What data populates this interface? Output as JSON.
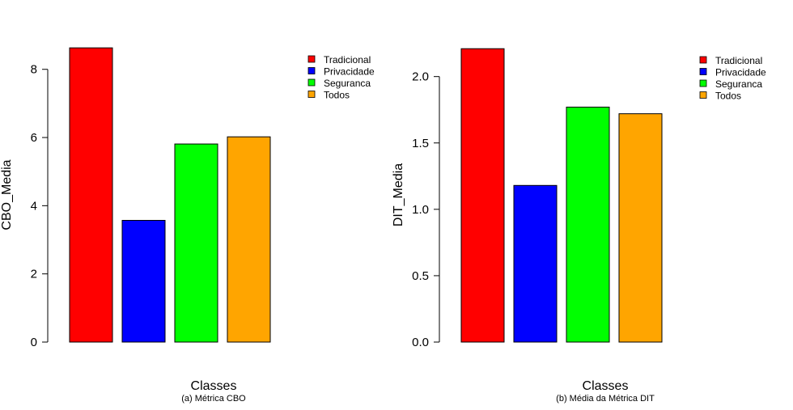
{
  "chart_data": [
    {
      "type": "bar",
      "categories": [
        "Tradicional",
        "Privacidade",
        "Seguranca",
        "Todos"
      ],
      "values": [
        8.63,
        3.57,
        5.81,
        6.02
      ],
      "colors": [
        "#ff0000",
        "#0000ff",
        "#00ff00",
        "#ffa500"
      ],
      "xlabel": "Classes",
      "ylabel": "CBO_Media",
      "caption": "(a) Métrica CBO",
      "yticks": [
        "0",
        "2",
        "4",
        "6",
        "8"
      ],
      "ytick_values": [
        0,
        2,
        4,
        6,
        8
      ],
      "ylim": [
        0,
        8.8
      ],
      "legend": [
        "Tradicional",
        "Privacidade",
        "Seguranca",
        "Todos"
      ],
      "legend_position": "top-right",
      "grid": false
    },
    {
      "type": "bar",
      "categories": [
        "Tradicional",
        "Privacidade",
        "Seguranca",
        "Todos"
      ],
      "values": [
        2.21,
        1.18,
        1.77,
        1.72
      ],
      "colors": [
        "#ff0000",
        "#0000ff",
        "#00ff00",
        "#ffa500"
      ],
      "xlabel": "Classes",
      "ylabel": "DIT_Media",
      "caption": "(b) Média da Métrica DIT",
      "yticks": [
        "0.0",
        "0.5",
        "1.0",
        "1.5",
        "2.0"
      ],
      "ytick_values": [
        0,
        0.5,
        1.0,
        1.5,
        2.0
      ],
      "ylim": [
        0,
        2.26
      ],
      "legend": [
        "Tradicional",
        "Privacidade",
        "Seguranca",
        "Todos"
      ],
      "legend_position": "top-right",
      "grid": false
    }
  ]
}
